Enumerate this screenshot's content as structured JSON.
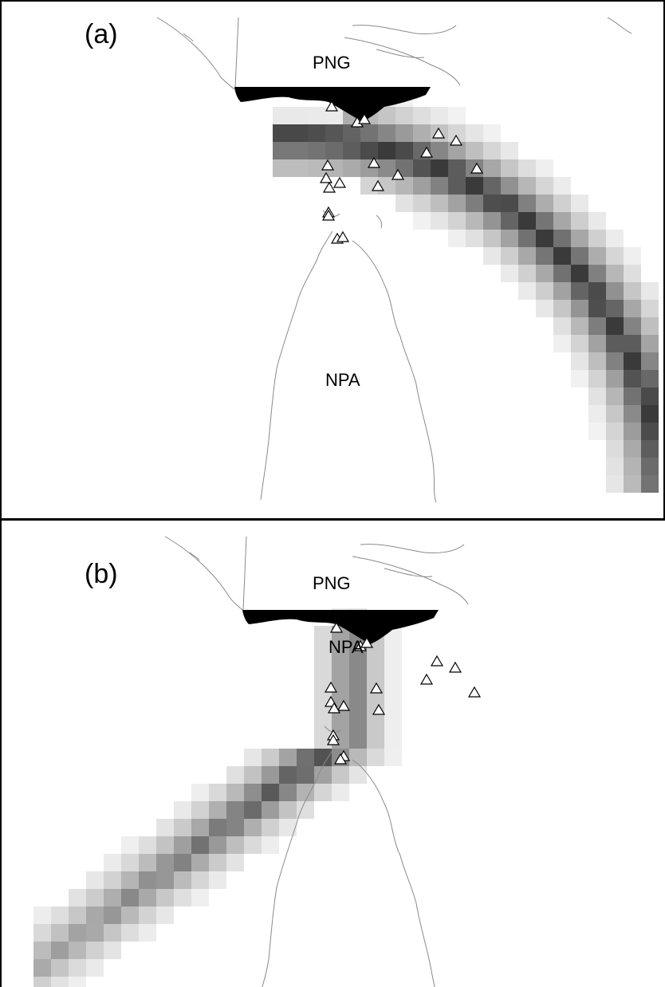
{
  "panels": [
    {
      "id": "a",
      "label": "(a)",
      "places": {
        "north": "PNG",
        "south": "NPA"
      }
    },
    {
      "id": "b",
      "label": "(b)",
      "places": {
        "north": "PNG",
        "south": "NPA"
      }
    }
  ],
  "colors": {
    "land_outline": "#7a7a7a",
    "border_fill": "#000000",
    "density_dark": "#3c3c3c",
    "density_light": "#f4f4f4",
    "triangle_fill": "#ffffff",
    "triangle_stroke": "#000000"
  },
  "legend_symbols": {
    "marker": "triangle"
  }
}
